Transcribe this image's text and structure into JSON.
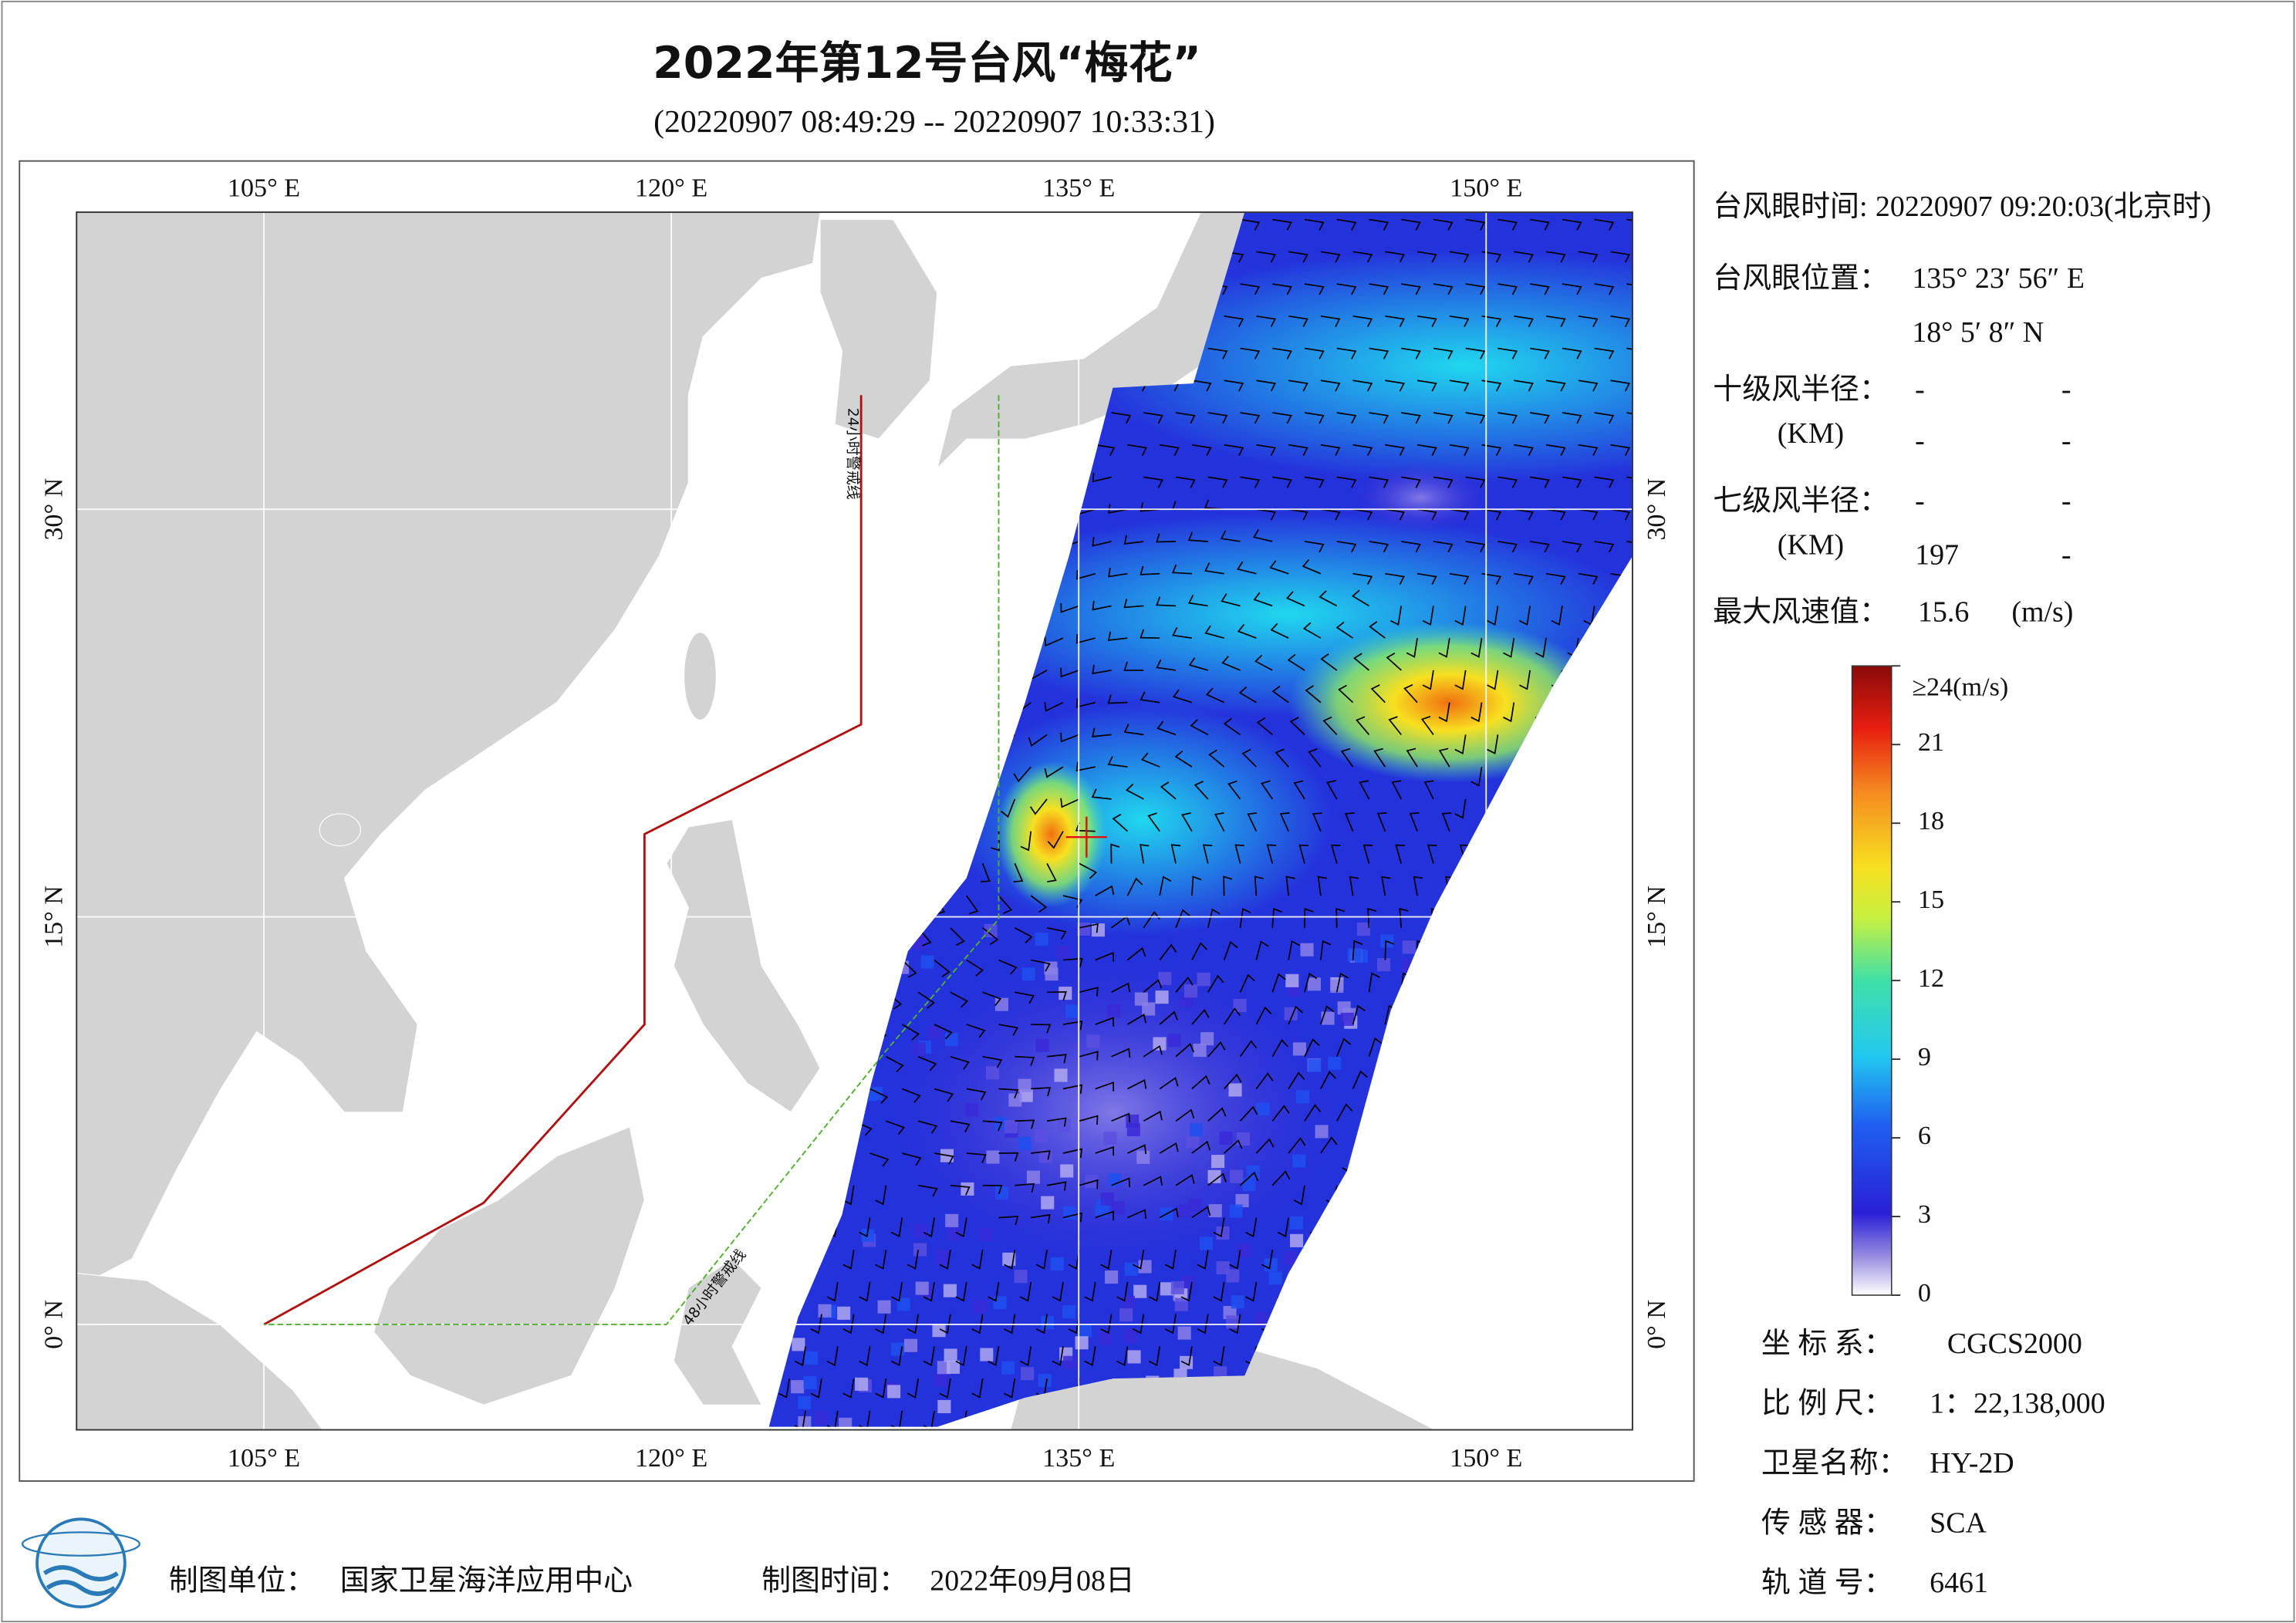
{
  "title": "2022年第12号台风“梅花”",
  "subtitle": "(20220907 08:49:29 -- 20220907 10:33:31)",
  "map": {
    "lon_ticks": [
      {
        "value": 105,
        "label": "105° E"
      },
      {
        "value": 120,
        "label": "120° E"
      },
      {
        "value": 135,
        "label": "135° E"
      },
      {
        "value": 150,
        "label": "150° E"
      }
    ],
    "lat_ticks": [
      {
        "value": 0,
        "label": "0° N"
      },
      {
        "value": 15,
        "label": "15° N"
      },
      {
        "value": 30,
        "label": "30° N"
      }
    ],
    "warning_lines": [
      "24小时警戒线",
      "48小时警戒线"
    ]
  },
  "info": {
    "eye_time": {
      "label": "台风眼时间:",
      "value": "20220907 09:20:03(北京时)"
    },
    "eye_position": {
      "label": "台风眼位置：",
      "lon": "135° 23′ 56″ E",
      "lat": "18° 5′ 8″ N"
    },
    "r10": {
      "label": "十级风半径：",
      "unit": "(KM)",
      "values": [
        "-",
        "-",
        "-",
        "-"
      ]
    },
    "r7": {
      "label": "七级风半径：",
      "unit": "(KM)",
      "values": [
        "-",
        "-",
        "197",
        "-"
      ]
    },
    "max_wind": {
      "label": "最大风速值：",
      "value": "15.6",
      "unit": "(m/s)"
    }
  },
  "colorbar": {
    "ticks": [
      0,
      3,
      6,
      9,
      12,
      15,
      18,
      21
    ],
    "max": {
      "value": 24,
      "label": "≥24(m/s)"
    }
  },
  "meta": [
    {
      "label": "坐 标 系：",
      "value": "CGCS2000"
    },
    {
      "label": "比 例 尺：",
      "value": "1：22,138,000"
    },
    {
      "label": "卫星名称：",
      "value": "HY-2D"
    },
    {
      "label": "传 感 器：",
      "value": "SCA"
    },
    {
      "label": "轨 道 号：",
      "value": "6461"
    }
  ],
  "footer": {
    "unit_label": "制图单位：",
    "unit": "国家卫星海洋应用中心",
    "time_label": "制图时间：",
    "time": "2022年09月08日"
  }
}
